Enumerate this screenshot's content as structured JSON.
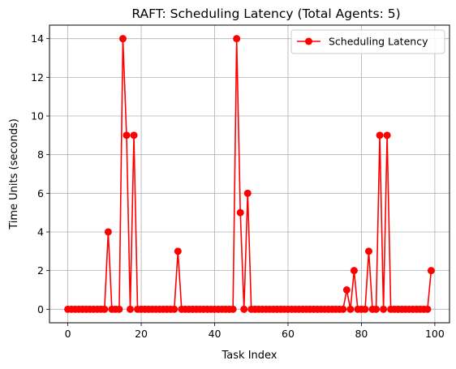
{
  "chart_data": {
    "type": "line",
    "title": "RAFT: Scheduling Latency (Total Agents: 5)",
    "xlabel": "Task Index",
    "ylabel": "Time Units (seconds)",
    "xlim": [
      -5,
      104
    ],
    "ylim": [
      -0.7,
      14.7
    ],
    "xticks": [
      0,
      20,
      40,
      60,
      80,
      100
    ],
    "yticks": [
      0,
      2,
      4,
      6,
      8,
      10,
      12,
      14
    ],
    "grid": true,
    "legend_position": "upper right",
    "series": [
      {
        "name": "Scheduling Latency",
        "color": "#ff0000",
        "marker": "circle",
        "x": [
          0,
          1,
          2,
          3,
          4,
          5,
          6,
          7,
          8,
          9,
          10,
          11,
          12,
          13,
          14,
          15,
          16,
          17,
          18,
          19,
          20,
          21,
          22,
          23,
          24,
          25,
          26,
          27,
          28,
          29,
          30,
          31,
          32,
          33,
          34,
          35,
          36,
          37,
          38,
          39,
          40,
          41,
          42,
          43,
          44,
          45,
          46,
          47,
          48,
          49,
          50,
          51,
          52,
          53,
          54,
          55,
          56,
          57,
          58,
          59,
          60,
          61,
          62,
          63,
          64,
          65,
          66,
          67,
          68,
          69,
          70,
          71,
          72,
          73,
          74,
          75,
          76,
          77,
          78,
          79,
          80,
          81,
          82,
          83,
          84,
          85,
          86,
          87,
          88,
          89,
          90,
          91,
          92,
          93,
          94,
          95,
          96,
          97,
          98,
          99
        ],
        "values": [
          0,
          0,
          0,
          0,
          0,
          0,
          0,
          0,
          0,
          0,
          0,
          4,
          0,
          0,
          0,
          14,
          9,
          0,
          9,
          0,
          0,
          0,
          0,
          0,
          0,
          0,
          0,
          0,
          0,
          0,
          3,
          0,
          0,
          0,
          0,
          0,
          0,
          0,
          0,
          0,
          0,
          0,
          0,
          0,
          0,
          0,
          14,
          5,
          0,
          6,
          0,
          0,
          0,
          0,
          0,
          0,
          0,
          0,
          0,
          0,
          0,
          0,
          0,
          0,
          0,
          0,
          0,
          0,
          0,
          0,
          0,
          0,
          0,
          0,
          0,
          0,
          1,
          0,
          2,
          0,
          0,
          0,
          3,
          0,
          0,
          9,
          0,
          9,
          0,
          0,
          0,
          0,
          0,
          0,
          0,
          0,
          0,
          0,
          0,
          2
        ]
      }
    ]
  }
}
